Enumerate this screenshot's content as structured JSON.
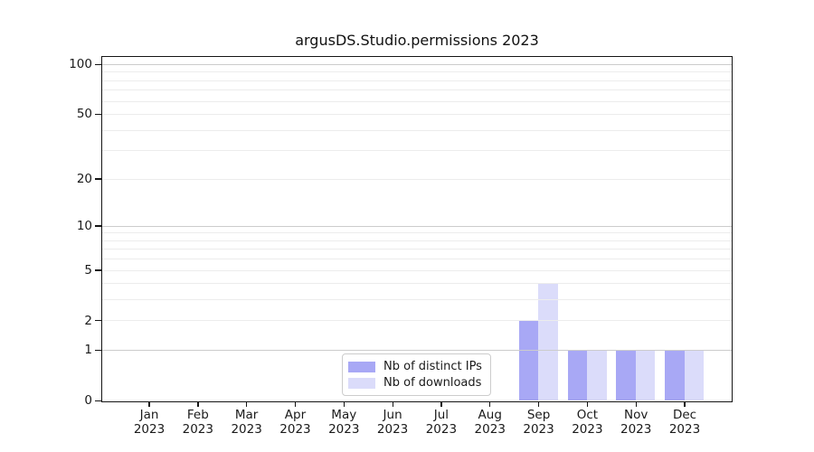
{
  "chart_data": {
    "type": "bar",
    "title": "argusDS.Studio.permissions 2023",
    "categories": [
      "Jan",
      "Feb",
      "Mar",
      "Apr",
      "May",
      "Jun",
      "Jul",
      "Aug",
      "Sep",
      "Oct",
      "Nov",
      "Dec"
    ],
    "category_year": "2023",
    "series": [
      {
        "name": "Nb of distinct IPs",
        "color": "#a8a8f5",
        "values": [
          0,
          0,
          0,
          0,
          0,
          0,
          0,
          0,
          2,
          1,
          1,
          1
        ]
      },
      {
        "name": "Nb of downloads",
        "color": "#dbdcfa",
        "values": [
          0,
          0,
          0,
          0,
          0,
          0,
          0,
          0,
          4,
          1,
          1,
          1
        ]
      }
    ],
    "y_axis": {
      "scale": "log1p",
      "tick_values": [
        0,
        1,
        2,
        5,
        10,
        20,
        50,
        100
      ],
      "major_gridlines": [
        1,
        10,
        100
      ],
      "minor_gridlines": [
        2,
        3,
        4,
        5,
        6,
        7,
        8,
        9,
        20,
        30,
        40,
        50,
        60,
        70,
        80,
        90
      ],
      "range": [
        0,
        110
      ]
    },
    "legend": {
      "position": "lower-center-inside"
    },
    "colors": {
      "background": "#ffffff",
      "spine": "#151515",
      "major_grid": "#cccccc",
      "minor_grid": "#ececec",
      "text": "#1a1a1a",
      "legend_border": "#cccccc"
    }
  }
}
